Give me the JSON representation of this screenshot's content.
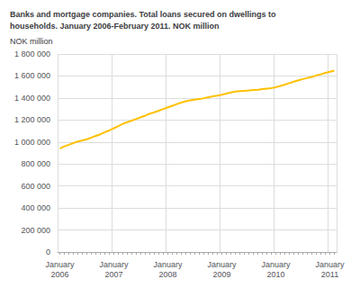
{
  "chart_data": {
    "type": "line",
    "title": "Banks and mortgage companies. Total loans secured on dwellings to\nhouseholds. January 2006-February 2011. NOK million",
    "ylabel": "NOK million",
    "color": "#FFC000",
    "grid": true,
    "categories": [
      "January\n2006",
      null,
      null,
      null,
      null,
      null,
      null,
      null,
      null,
      null,
      null,
      null,
      "January\n2007",
      null,
      null,
      null,
      null,
      null,
      null,
      null,
      null,
      null,
      null,
      null,
      "January\n2008",
      null,
      null,
      null,
      null,
      null,
      null,
      null,
      null,
      null,
      null,
      null,
      "January\n2009",
      null,
      null,
      null,
      null,
      null,
      null,
      null,
      null,
      null,
      null,
      null,
      "January\n2010",
      null,
      null,
      null,
      null,
      null,
      null,
      null,
      null,
      null,
      null,
      null,
      "January\n2011",
      null
    ],
    "values": [
      940000,
      960000,
      975000,
      990000,
      1005000,
      1015000,
      1025000,
      1040000,
      1055000,
      1070000,
      1090000,
      1105000,
      1125000,
      1145000,
      1165000,
      1180000,
      1195000,
      1210000,
      1225000,
      1240000,
      1258000,
      1270000,
      1285000,
      1300000,
      1315000,
      1330000,
      1345000,
      1358000,
      1370000,
      1378000,
      1385000,
      1390000,
      1398000,
      1408000,
      1415000,
      1422000,
      1430000,
      1440000,
      1450000,
      1458000,
      1462000,
      1465000,
      1468000,
      1472000,
      1475000,
      1480000,
      1485000,
      1490000,
      1498000,
      1510000,
      1522000,
      1535000,
      1548000,
      1560000,
      1572000,
      1582000,
      1592000,
      1605000,
      1615000,
      1628000,
      1638000,
      1648000
    ],
    "ylim": [
      0,
      1800000
    ],
    "yticks": [
      0,
      {
        "value": 200000,
        "label": "200 000"
      },
      {
        "value": 400000,
        "label": "400 000"
      },
      {
        "value": 600000,
        "label": "600 000"
      },
      {
        "value": 800000,
        "label": "800 000"
      },
      {
        "value": 1000000,
        "label": "1 000 000"
      },
      {
        "value": 1200000,
        "label": "1 200 000"
      },
      {
        "value": 1400000,
        "label": "1 400 000"
      },
      {
        "value": 1600000,
        "label": "1 600 000"
      },
      {
        "value": 1800000,
        "label": "1 800 000"
      }
    ]
  }
}
